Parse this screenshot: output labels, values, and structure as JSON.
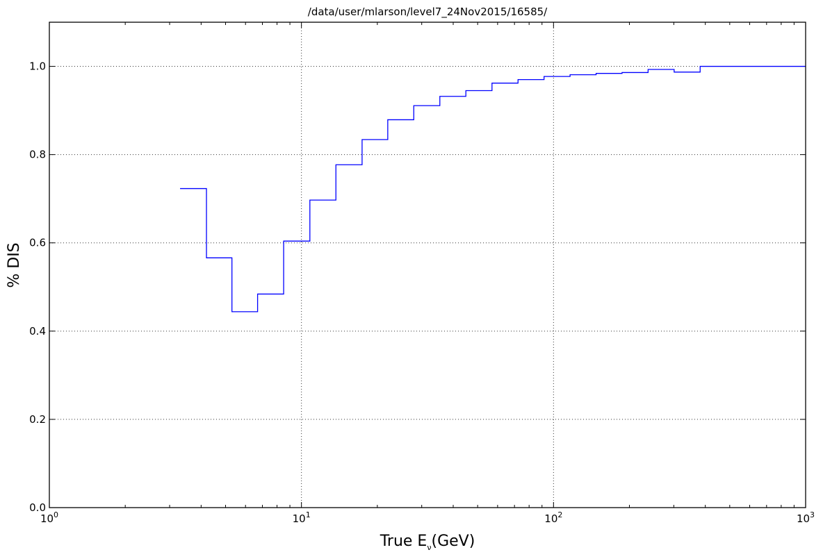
{
  "chart_data": {
    "type": "line",
    "drawstyle": "steps",
    "title": "/data/user/mlarson/level7_24Nov2015/16585/",
    "xlabel": {
      "main": "True E",
      "sub": "ν",
      "tail": "(GeV)"
    },
    "ylabel": "% DIS",
    "xscale": "log",
    "xlim": [
      1,
      1000
    ],
    "ylim": [
      0.0,
      1.1
    ],
    "grid": true,
    "line_color": "#0000ff",
    "x_ticks": [
      {
        "base": "10",
        "exp": "0",
        "value": 1
      },
      {
        "base": "10",
        "exp": "1",
        "value": 10
      },
      {
        "base": "10",
        "exp": "2",
        "value": 100
      },
      {
        "base": "10",
        "exp": "3",
        "value": 1000
      }
    ],
    "y_ticks": [
      "0.0",
      "0.2",
      "0.4",
      "0.6",
      "0.8",
      "1.0"
    ],
    "y_tick_values": [
      0.0,
      0.2,
      0.4,
      0.6,
      0.8,
      1.0
    ],
    "series": [
      {
        "bin_edges": [
          3.3,
          4.2,
          5.3,
          6.7,
          8.5,
          10.8,
          13.7,
          17.4,
          22.0,
          27.9,
          35.4,
          44.9,
          57.0,
          72.3,
          91.7,
          116.3,
          147.5,
          187.0,
          237.2,
          300.9,
          381.6,
          1000
        ],
        "values": [
          0.723,
          0.566,
          0.444,
          0.484,
          0.604,
          0.697,
          0.777,
          0.834,
          0.879,
          0.911,
          0.932,
          0.945,
          0.962,
          0.97,
          0.977,
          0.981,
          0.984,
          0.986,
          0.993,
          0.987,
          1.0
        ]
      }
    ]
  }
}
